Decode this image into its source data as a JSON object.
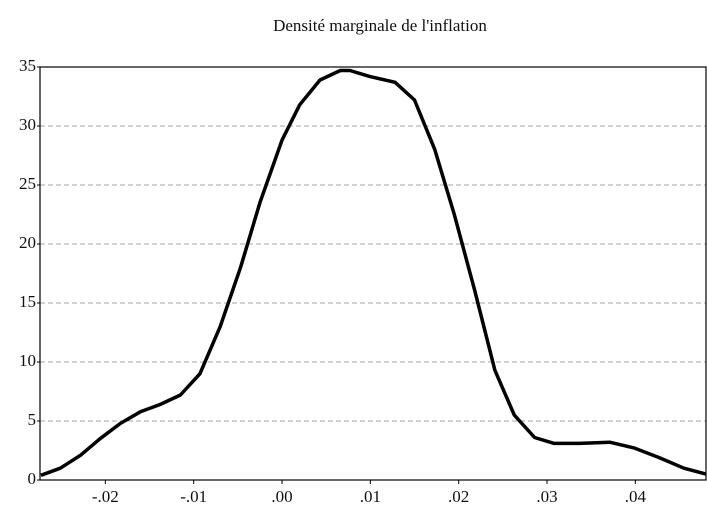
{
  "chart_data": {
    "type": "line",
    "title": "Densité marginale de l'inflation",
    "x": [
      -0.0273,
      -0.0251,
      -0.0228,
      -0.0206,
      -0.0183,
      -0.016,
      -0.0138,
      -0.0115,
      -0.0093,
      -0.007,
      -0.0047,
      -0.0025,
      0,
      0.002,
      0.0043,
      0.0066,
      0.0077,
      0.0099,
      0.0128,
      0.015,
      0.0173,
      0.0195,
      0.0218,
      0.0241,
      0.0263,
      0.0286,
      0.0308,
      0.0337,
      0.0371,
      0.0399,
      0.0427,
      0.0455,
      0.048
    ],
    "values": [
      0.4,
      1.0,
      2.1,
      3.5,
      4.8,
      5.8,
      6.4,
      7.2,
      9.0,
      13.0,
      18.0,
      23.5,
      28.8,
      31.8,
      33.9,
      34.7,
      34.7,
      34.2,
      33.7,
      32.2,
      28.0,
      22.5,
      16.1,
      9.3,
      5.5,
      3.6,
      3.1,
      3.1,
      3.2,
      2.7,
      1.9,
      1.0,
      0.5
    ],
    "color": "#000000",
    "xlim": [
      -0.0274,
      0.048
    ],
    "xticks": [
      {
        "value": -0.02,
        "label": "-.02"
      },
      {
        "value": -0.01,
        "label": "-.01"
      },
      {
        "value": 0,
        "label": ".00"
      },
      {
        "value": 0.01,
        "label": ".01"
      },
      {
        "value": 0.02,
        "label": ".02"
      },
      {
        "value": 0.03,
        "label": ".03"
      },
      {
        "value": 0.04,
        "label": ".04"
      }
    ],
    "ylim": [
      0,
      35
    ],
    "yticks": [
      0,
      5,
      10,
      15,
      20,
      25,
      30,
      35
    ],
    "grid": true
  }
}
